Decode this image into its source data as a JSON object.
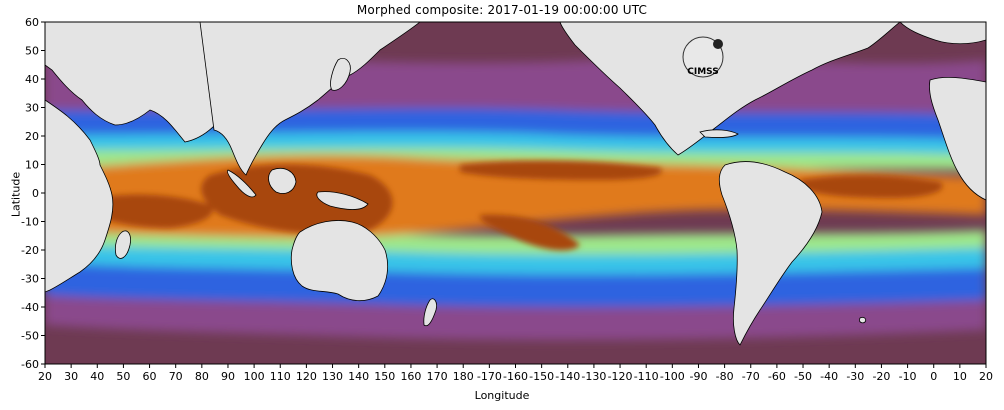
{
  "map": {
    "title": "Morphed composite: 2017-01-19 00:00:00 UTC",
    "xlabel": "Longitude",
    "ylabel": "Latitude",
    "lon_range": [
      20,
      380
    ],
    "lat_range": [
      -60,
      60
    ],
    "lon_ticks": [
      20,
      30,
      40,
      50,
      60,
      70,
      80,
      90,
      100,
      110,
      120,
      130,
      140,
      150,
      160,
      170,
      180,
      190,
      200,
      210,
      220,
      230,
      240,
      250,
      260,
      270,
      280,
      290,
      300,
      310,
      320,
      330,
      340,
      350,
      360,
      370,
      380
    ],
    "lon_tick_labels": [
      "20",
      "30",
      "40",
      "50",
      "60",
      "70",
      "80",
      "90",
      "100",
      "110",
      "120",
      "130",
      "140",
      "150",
      "160",
      "170",
      "180",
      "-170",
      "-160",
      "-150",
      "-140",
      "-130",
      "-120",
      "-110",
      "-100",
      "-90",
      "-80",
      "-70",
      "-60",
      "-50",
      "-40",
      "-30",
      "-20",
      "-10",
      "0",
      "10",
      "20"
    ],
    "lat_ticks": [
      60,
      50,
      40,
      30,
      20,
      10,
      0,
      -10,
      -20,
      -30,
      -40,
      -50,
      -60
    ],
    "lat_tick_labels": [
      "60",
      "50",
      "40",
      "30",
      "20",
      "10",
      "0",
      "-10",
      "-20",
      "-30",
      "-40",
      "-50",
      "-60"
    ],
    "logo_text": "CIMSS",
    "colors": {
      "land": "#e4e4e4",
      "very_dry": "#6e3a52",
      "dry": "#8a4a8c",
      "moderate": "#2d63e0",
      "moist": "#38c4e8",
      "wet": "#9ee88a",
      "very_wet": "#e07a1e",
      "extreme": "#a8460e"
    }
  }
}
